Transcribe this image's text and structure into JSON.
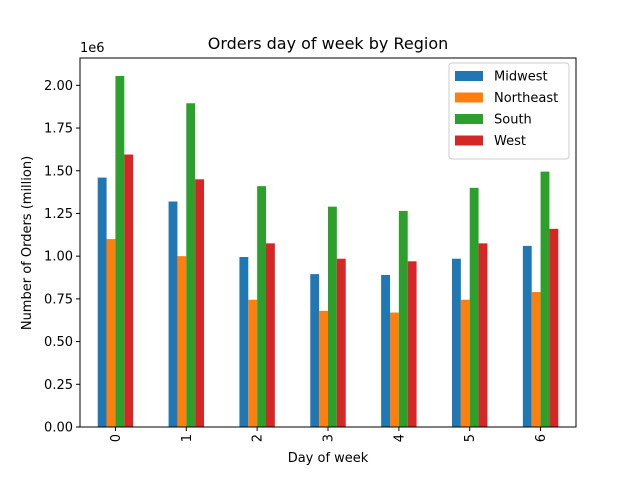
{
  "chart_data": {
    "type": "bar",
    "title": "Orders day of week by Region",
    "xlabel": "Day of week",
    "ylabel": "Number of Orders (million)",
    "y_offset_label": "1e6",
    "categories": [
      "0",
      "1",
      "2",
      "3",
      "4",
      "5",
      "6"
    ],
    "ylim": [
      0,
      2160000
    ],
    "yticks": [
      0,
      250000,
      500000,
      750000,
      1000000,
      1250000,
      1500000,
      1750000,
      2000000
    ],
    "ytick_labels": [
      "0.00",
      "0.25",
      "0.50",
      "0.75",
      "1.00",
      "1.25",
      "1.50",
      "1.75",
      "2.00"
    ],
    "legend_position": "top-right",
    "grid": false,
    "series": [
      {
        "name": "Midwest",
        "color": "#1f77b4",
        "values": [
          1460000,
          1320000,
          995000,
          895000,
          890000,
          985000,
          1060000
        ]
      },
      {
        "name": "Northeast",
        "color": "#ff7f0e",
        "values": [
          1100000,
          1000000,
          745000,
          680000,
          670000,
          745000,
          790000
        ]
      },
      {
        "name": "South",
        "color": "#2ca02c",
        "values": [
          2055000,
          1895000,
          1410000,
          1290000,
          1265000,
          1400000,
          1495000
        ]
      },
      {
        "name": "West",
        "color": "#d62728",
        "values": [
          1595000,
          1450000,
          1075000,
          985000,
          970000,
          1075000,
          1160000
        ]
      }
    ]
  }
}
